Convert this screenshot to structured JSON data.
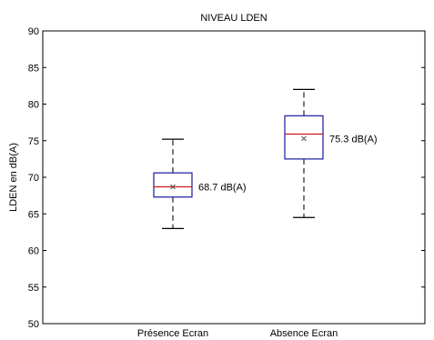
{
  "chart_data": {
    "type": "box",
    "title": "NIVEAU LDEN",
    "ylabel": "LDEN en dB(A)",
    "xlabel": "",
    "ylim": [
      50,
      90
    ],
    "yticks": [
      50,
      55,
      60,
      65,
      70,
      75,
      80,
      85,
      90
    ],
    "grid": false,
    "categories": [
      "Présence Ecran",
      "Absence Ecran"
    ],
    "boxes": [
      {
        "category": "Présence Ecran",
        "whisker_low": 63.0,
        "q1": 67.3,
        "median": 68.7,
        "q3": 70.6,
        "whisker_high": 75.2,
        "mean": 68.7,
        "annotation": "68.7 dB(A)"
      },
      {
        "category": "Absence Ecran",
        "whisker_low": 64.5,
        "q1": 72.5,
        "median": 75.9,
        "q3": 78.4,
        "whisker_high": 82.0,
        "mean": 75.3,
        "annotation": "75.3 dB(A)"
      }
    ],
    "colors": {
      "box": "#2a2aa8",
      "median": "#d01818",
      "whisker": "#333333",
      "mean_marker": "#555555",
      "axis": "#000000"
    }
  }
}
